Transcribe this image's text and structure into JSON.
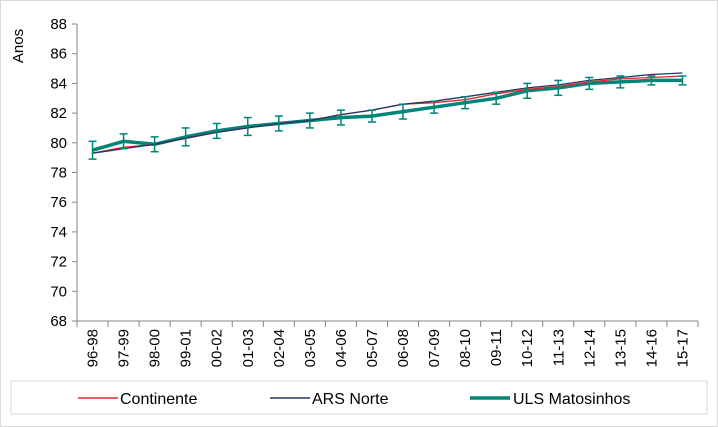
{
  "chart_data": {
    "type": "line",
    "title": "",
    "xlabel": "",
    "ylabel": "Anos",
    "ylim": [
      68,
      88
    ],
    "yticks": [
      "68",
      "70",
      "72",
      "74",
      "76",
      "78",
      "80",
      "82",
      "84",
      "86",
      "88"
    ],
    "grid": false,
    "legend_position": "bottom",
    "categories": [
      "96-98",
      "97-99",
      "98-00",
      "99-01",
      "00-02",
      "01-03",
      "02-04",
      "03-05",
      "04-06",
      "05-07",
      "06-08",
      "07-09",
      "08-10",
      "09-11",
      "10-12",
      "11-13",
      "12-14",
      "13-15",
      "14-16",
      "15-17"
    ],
    "series": [
      {
        "name": "Continente",
        "color": "#e0292f",
        "values": [
          79.3,
          79.7,
          79.9,
          80.3,
          80.7,
          81.0,
          81.3,
          81.5,
          81.9,
          82.2,
          82.6,
          82.7,
          82.9,
          83.3,
          83.6,
          83.8,
          84.1,
          84.3,
          84.4,
          84.5
        ]
      },
      {
        "name": "ARS Norte",
        "color": "#1f3864",
        "values": [
          79.3,
          79.6,
          79.9,
          80.3,
          80.7,
          81.0,
          81.3,
          81.5,
          81.9,
          82.2,
          82.6,
          82.8,
          83.1,
          83.4,
          83.7,
          83.9,
          84.2,
          84.4,
          84.6,
          84.7
        ]
      },
      {
        "name": "ULS Matosinhos",
        "color": "#008577",
        "values": [
          79.5,
          80.1,
          79.9,
          80.4,
          80.8,
          81.1,
          81.3,
          81.5,
          81.7,
          81.8,
          82.1,
          82.4,
          82.7,
          83.0,
          83.5,
          83.7,
          84.0,
          84.1,
          84.2,
          84.2
        ],
        "error": [
          0.6,
          0.5,
          0.5,
          0.6,
          0.5,
          0.6,
          0.5,
          0.5,
          0.5,
          0.4,
          0.5,
          0.4,
          0.4,
          0.4,
          0.5,
          0.5,
          0.4,
          0.4,
          0.3,
          0.3
        ]
      }
    ]
  }
}
